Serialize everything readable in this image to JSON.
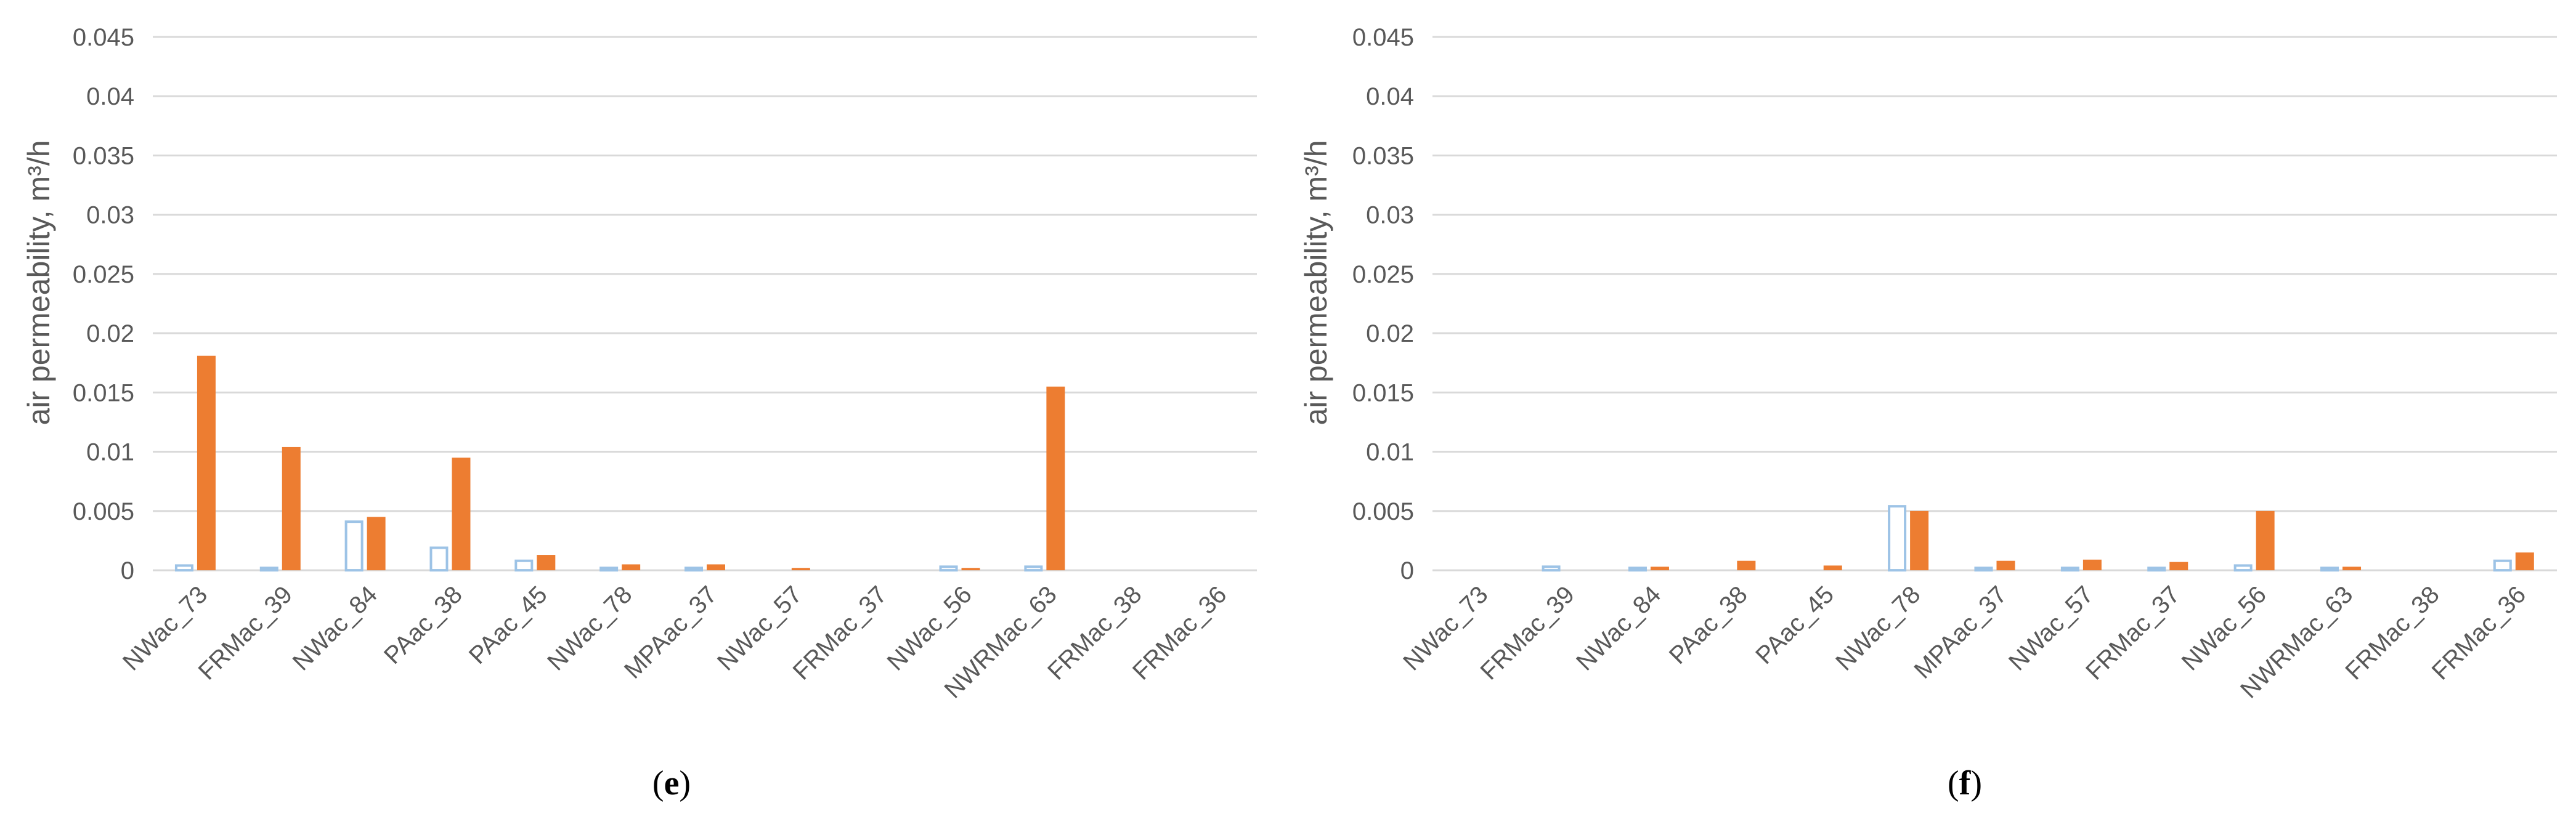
{
  "colors": {
    "series_1": "#9DC3E6",
    "series_2": "#ED7D31",
    "grid": "#D9D9D9",
    "text": "#595959"
  },
  "chart_data": [
    {
      "type": "bar",
      "panel": "e",
      "ylabel": "air permeability, m³/h",
      "ylim": [
        0,
        0.045
      ],
      "yticks": [
        "0",
        "0.005",
        "0.01",
        "0.015",
        "0.02",
        "0.025",
        "0.03",
        "0.035",
        "0.04",
        "0.045"
      ],
      "grid": true,
      "categories": [
        "NWac_73",
        "FRMac_39",
        "NWac_84",
        "PAac_38",
        "PAac_45",
        "NWac_78",
        "MPAac_37",
        "NWac_57",
        "FRMac_37",
        "NWac_56",
        "NWRMac_63",
        "FRMac_38",
        "FRMac_36"
      ],
      "series": [
        {
          "style": "hollow",
          "values": [
            0.0004,
            0.0002,
            0.0041,
            0.0019,
            0.0008,
            0.0002,
            0.0002,
            0.0,
            0.0,
            0.0003,
            0.0003,
            0.0,
            0.0
          ]
        },
        {
          "style": "filled",
          "values": [
            0.0181,
            0.0104,
            0.0045,
            0.0095,
            0.0013,
            0.0005,
            0.0005,
            0.0002,
            0.0,
            0.0002,
            0.0155,
            0.0,
            0.0
          ]
        }
      ]
    },
    {
      "type": "bar",
      "panel": "f",
      "ylabel": "air permeability, m³/h",
      "ylim": [
        0,
        0.045
      ],
      "yticks": [
        "0",
        "0.005",
        "0.01",
        "0.015",
        "0.02",
        "0.025",
        "0.03",
        "0.035",
        "0.04",
        "0.045"
      ],
      "grid": true,
      "categories": [
        "NWac_73",
        "FRMac_39",
        "NWac_84",
        "PAac_38",
        "PAac_45",
        "NWac_78",
        "MPAac_37",
        "NWac_57",
        "FRMac_37",
        "NWac_56",
        "NWRMac_63",
        "FRMac_38",
        "FRMac_36"
      ],
      "series": [
        {
          "style": "hollow",
          "values": [
            0.0,
            0.0003,
            0.0002,
            0.0,
            0.0,
            0.0054,
            0.0002,
            0.0002,
            0.0002,
            0.0004,
            0.0002,
            0.0,
            0.0008
          ]
        },
        {
          "style": "filled",
          "values": [
            0.0,
            0.0,
            0.0003,
            0.0008,
            0.0004,
            0.005,
            0.0008,
            0.0009,
            0.0007,
            0.005,
            0.0003,
            0.0,
            0.0015
          ]
        }
      ]
    }
  ]
}
